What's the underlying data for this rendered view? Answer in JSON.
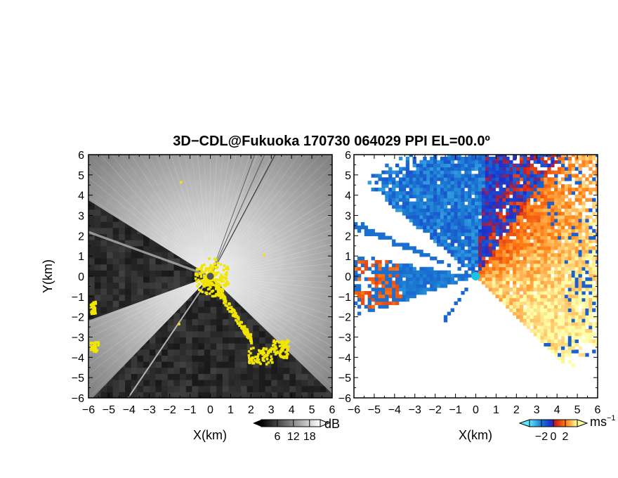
{
  "chart_data": [
    {
      "type": "heatmap",
      "panel": "left",
      "title": "3D−CDL@Fukuoka 170730 064029 PPI EL=00.0º",
      "xlabel": "X(km)",
      "ylabel": "Y(km)",
      "xlim": [
        -6,
        6
      ],
      "ylim": [
        -6,
        6
      ],
      "x_ticks": [
        "−6",
        "−5",
        "−4",
        "−3",
        "−2",
        "−1",
        "0",
        "1",
        "2",
        "3",
        "4",
        "5",
        "6"
      ],
      "y_ticks": [
        "6",
        "5",
        "4",
        "3",
        "2",
        "1",
        "0",
        "−1",
        "−2",
        "−3",
        "−4",
        "−5",
        "−6"
      ],
      "colorbar": {
        "unit": "dB",
        "ticks": [
          "6",
          "12",
          "18"
        ],
        "tick_values": [
          6,
          12,
          18
        ],
        "range": [
          0,
          22
        ],
        "colormap": "grayscale"
      },
      "background_color": "#2a2a2a",
      "highlight_color": "#f2e600",
      "shadow_sectors_deg": [
        [
          148,
          200
        ],
        [
          226,
          316
        ]
      ]
    },
    {
      "type": "heatmap",
      "panel": "right",
      "xlabel": "X(km)",
      "xlim": [
        -6,
        6
      ],
      "ylim": [
        -6,
        6
      ],
      "x_ticks": [
        "−6",
        "−5",
        "−4",
        "−3",
        "−2",
        "−1",
        "0",
        "1",
        "2",
        "3",
        "4",
        "5",
        "6"
      ],
      "y_ticks": [
        "6",
        "5",
        "4",
        "3",
        "2",
        "1",
        "0",
        "−1",
        "−2",
        "−3",
        "−4",
        "−5",
        "−6"
      ],
      "colorbar": {
        "unit": "ms",
        "unit_exponent": "−1",
        "ticks": [
          "−2",
          "0",
          "2"
        ],
        "tick_values": [
          -2,
          0,
          2
        ],
        "range": [
          -4,
          4
        ],
        "colormap": "cyan-blue-red-orange-yellow"
      },
      "center_marker_color": "#19c3e6"
    }
  ]
}
